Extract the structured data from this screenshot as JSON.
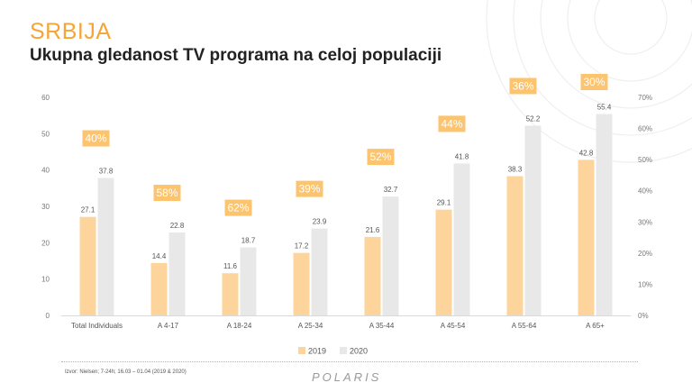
{
  "header": {
    "country": "SRBIJA",
    "title": "Ukupna gledanost TV programa na celoj populaciji"
  },
  "footer": {
    "source": "Izvor: Nielsen; 7-24h; 16.03 – 01.04 (2019 & 2020)",
    "logo": "POLARIS"
  },
  "colors": {
    "accent": "#F4A534",
    "bar_2019": "#FDD49B",
    "bar_2020": "#E8E8E8",
    "pct_badge": "#FCC46F"
  },
  "chart_data": {
    "type": "bar",
    "categories": [
      "Total Individuals",
      "A 4-17",
      "A 18-24",
      "A 25-34",
      "A 35-44",
      "A 45-54",
      "A 55-64",
      "A 65+"
    ],
    "series": [
      {
        "name": "2019",
        "values": [
          27.1,
          14.4,
          11.6,
          17.2,
          21.6,
          29.1,
          38.3,
          42.8
        ]
      },
      {
        "name": "2020",
        "values": [
          37.8,
          22.8,
          18.7,
          23.9,
          32.7,
          41.8,
          52.2,
          55.4
        ]
      }
    ],
    "growth": [
      "40%",
      "58%",
      "62%",
      "39%",
      "52%",
      "44%",
      "36%",
      "30%"
    ],
    "ylim": [
      0,
      60
    ],
    "yticks": [
      "0",
      "10",
      "20",
      "30",
      "40",
      "50",
      "60"
    ],
    "y2ticks": [
      "0%",
      "10%",
      "20%",
      "30%",
      "40%",
      "50%",
      "60%",
      "70%"
    ],
    "y2lim": [
      0,
      70
    ],
    "legend_position": "bottom-center",
    "grid": false
  }
}
